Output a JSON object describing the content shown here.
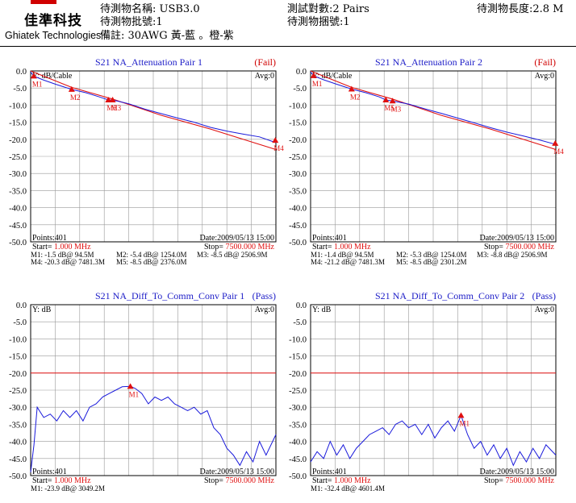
{
  "header": {
    "logo_cn": "佳準科技",
    "logo_en": "Ghiatek Technologies",
    "dut_name": "待測物名稱: USB3.0",
    "lot_no": "待測物批號:1",
    "remark": "備註: 30AWG 黃-藍 。橙-紫",
    "test_pairs": "測試對數:2 Pairs",
    "bundle_no": "待測物捆號:1",
    "dut_length": "待測物長度:2.8 M"
  },
  "colors": {
    "trace": "#1a1adb",
    "limit": "#e01010",
    "title": "#2020c8",
    "fail": "#d00000",
    "pass": "#2020c8",
    "marker": "#e01010",
    "grid": "#999999",
    "red_text": "#e01010"
  },
  "chart_data": [
    {
      "type": "line",
      "title": "S21  NA_Attenuation Pair 1",
      "status": "(Fail)",
      "ylabel": "Y: dB/Cable",
      "avg": "Avg:0",
      "ylim": [
        -50,
        0
      ],
      "yticks": [
        "0.0",
        "-5.0",
        "-10.0",
        "-15.0",
        "-20.0",
        "-25.0",
        "-30.0",
        "-35.0",
        "-40.0",
        "-45.0",
        "-50.0"
      ],
      "points": "Points:401",
      "date": "Date:2009/05/13 15:00",
      "start_label": "Start=",
      "start_value": "1.000 MHz",
      "stop_label": "Stop=",
      "stop_value": "7500.000 MHz",
      "marker_lines": [
        "M1: -1.5 dB@ 94.5M",
        "M2: -5.4 dB@ 1254.0M",
        "M3: -8.5 dB@ 2506.9M",
        "M4: -20.3 dB@ 7481.3M",
        "M5: -8.5 dB@ 2376.0M"
      ],
      "trace": [
        [
          0,
          -0.3
        ],
        [
          94.5,
          -1.5
        ],
        [
          400,
          -2.7
        ],
        [
          800,
          -4.0
        ],
        [
          1254,
          -5.4
        ],
        [
          1700,
          -6.4
        ],
        [
          2100,
          -7.6
        ],
        [
          2376,
          -8.5
        ],
        [
          2506.9,
          -8.5
        ],
        [
          3000,
          -9.6
        ],
        [
          3500,
          -11.2
        ],
        [
          4000,
          -12.5
        ],
        [
          4500,
          -13.8
        ],
        [
          5000,
          -15.0
        ],
        [
          5500,
          -16.5
        ],
        [
          6000,
          -17.6
        ],
        [
          6500,
          -18.5
        ],
        [
          7000,
          -19.3
        ],
        [
          7500,
          -21.0
        ]
      ],
      "limit": [
        [
          0,
          0
        ],
        [
          1254,
          -4.8
        ],
        [
          2500,
          -8.2
        ],
        [
          4000,
          -13.0
        ],
        [
          5500,
          -17.0
        ],
        [
          7500,
          -23.0
        ]
      ],
      "markers": [
        {
          "label": "M1",
          "x": 94.5,
          "y": -1.5
        },
        {
          "label": "M2",
          "x": 1254,
          "y": -5.4
        },
        {
          "label": "M3",
          "x": 2506.9,
          "y": -8.5
        },
        {
          "label": "M4",
          "x": 7481.3,
          "y": -20.3
        },
        {
          "label": "M5",
          "x": 2376,
          "y": -8.5
        }
      ]
    },
    {
      "type": "line",
      "title": "S21  NA_Attenuation Pair 2",
      "status": "(Fail)",
      "ylabel": "Y: dB/Cable",
      "avg": "Avg:0",
      "ylim": [
        -50,
        0
      ],
      "yticks": [
        "0.0",
        "-5.0",
        "-10.0",
        "-15.0",
        "-20.0",
        "-25.0",
        "-30.0",
        "-35.0",
        "-40.0",
        "-45.0",
        "-50.0"
      ],
      "points": "Points:401",
      "date": "Date:2009/05/13 15:00",
      "start_label": "Start=",
      "start_value": "1.000 MHz",
      "stop_label": "Stop=",
      "stop_value": "7500.000 MHz",
      "marker_lines": [
        "M1: -1.4 dB@ 94.5M",
        "M2: -5.3 dB@ 1254.0M",
        "M3: -8.8 dB@ 2506.9M",
        "M4: -21.2 dB@ 7481.3M",
        "M5: -8.5 dB@ 2301.2M"
      ],
      "trace": [
        [
          0,
          -0.3
        ],
        [
          94.5,
          -1.4
        ],
        [
          400,
          -2.6
        ],
        [
          800,
          -3.9
        ],
        [
          1254,
          -5.3
        ],
        [
          1700,
          -6.4
        ],
        [
          2100,
          -7.6
        ],
        [
          2301.2,
          -8.5
        ],
        [
          2506.9,
          -8.8
        ],
        [
          3000,
          -9.7
        ],
        [
          3500,
          -11.1
        ],
        [
          4000,
          -12.4
        ],
        [
          4500,
          -13.8
        ],
        [
          5000,
          -15.2
        ],
        [
          5500,
          -16.6
        ],
        [
          6000,
          -17.9
        ],
        [
          6500,
          -19.0
        ],
        [
          7000,
          -20.2
        ],
        [
          7500,
          -21.5
        ]
      ],
      "limit": [
        [
          0,
          0
        ],
        [
          1254,
          -4.8
        ],
        [
          2500,
          -8.2
        ],
        [
          4000,
          -13.0
        ],
        [
          5500,
          -17.0
        ],
        [
          7500,
          -23.0
        ]
      ],
      "markers": [
        {
          "label": "M1",
          "x": 94.5,
          "y": -1.4
        },
        {
          "label": "M2",
          "x": 1254,
          "y": -5.3
        },
        {
          "label": "M3",
          "x": 2506.9,
          "y": -8.8
        },
        {
          "label": "M4",
          "x": 7481.3,
          "y": -21.2
        },
        {
          "label": "M5",
          "x": 2301.2,
          "y": -8.5
        }
      ]
    },
    {
      "type": "line",
      "title": "S21  NA_Diff_To_Comm_Conv Pair 1",
      "status": "(Pass)",
      "ylabel": "Y: dB",
      "avg": "Avg:0",
      "ylim": [
        -50,
        0
      ],
      "yticks": [
        "0.0",
        "-5.0",
        "-10.0",
        "-15.0",
        "-20.0",
        "-25.0",
        "-30.0",
        "-35.0",
        "-40.0",
        "-45.0",
        "-50.0"
      ],
      "points": "Points:401",
      "date": "Date:2009/05/13 15:00",
      "start_label": "Start=",
      "start_value": "1.000 MHz",
      "stop_label": "Stop=",
      "stop_value": "7500.000 MHz",
      "marker_lines": [
        "M1: -23.9 dB@ 3049.2M"
      ],
      "limit_level": -20,
      "trace": [
        [
          0,
          -49
        ],
        [
          100,
          -41
        ],
        [
          200,
          -30
        ],
        [
          400,
          -33
        ],
        [
          600,
          -32
        ],
        [
          800,
          -34
        ],
        [
          1000,
          -31
        ],
        [
          1200,
          -33
        ],
        [
          1400,
          -31
        ],
        [
          1600,
          -34
        ],
        [
          1800,
          -30
        ],
        [
          2000,
          -29
        ],
        [
          2200,
          -27
        ],
        [
          2400,
          -26
        ],
        [
          2600,
          -25
        ],
        [
          2800,
          -24
        ],
        [
          3049.2,
          -23.9
        ],
        [
          3200,
          -24.5
        ],
        [
          3400,
          -26
        ],
        [
          3600,
          -29
        ],
        [
          3800,
          -27
        ],
        [
          4000,
          -28
        ],
        [
          4200,
          -27
        ],
        [
          4400,
          -29
        ],
        [
          4600,
          -30
        ],
        [
          4800,
          -31
        ],
        [
          5000,
          -30
        ],
        [
          5200,
          -32
        ],
        [
          5400,
          -31
        ],
        [
          5600,
          -36
        ],
        [
          5800,
          -38
        ],
        [
          6000,
          -42
        ],
        [
          6200,
          -44
        ],
        [
          6400,
          -47
        ],
        [
          6600,
          -43
        ],
        [
          6800,
          -46
        ],
        [
          7000,
          -40
        ],
        [
          7200,
          -44
        ],
        [
          7500,
          -38
        ]
      ],
      "markers": [
        {
          "label": "M1",
          "x": 3049.2,
          "y": -23.9
        }
      ]
    },
    {
      "type": "line",
      "title": "S21  NA_Diff_To_Comm_Conv Pair 2",
      "status": "(Pass)",
      "ylabel": "Y: dB",
      "avg": "Avg:0",
      "ylim": [
        -50,
        0
      ],
      "yticks": [
        "0.0",
        "-5.0",
        "-10.0",
        "-15.0",
        "-20.0",
        "-25.0",
        "-30.0",
        "-35.0",
        "-40.0",
        "-45.0",
        "-50.0"
      ],
      "points": "Points:401",
      "date": "Date:2009/05/13 15:00",
      "start_label": "Start=",
      "start_value": "1.000 MHz",
      "stop_label": "Stop=",
      "stop_value": "7500.000 MHz",
      "marker_lines": [
        "M1: -32.4 dB@ 4601.4M"
      ],
      "limit_level": -20,
      "trace": [
        [
          0,
          -46
        ],
        [
          200,
          -43
        ],
        [
          400,
          -45
        ],
        [
          600,
          -40
        ],
        [
          800,
          -44
        ],
        [
          1000,
          -41
        ],
        [
          1200,
          -45
        ],
        [
          1400,
          -42
        ],
        [
          1600,
          -40
        ],
        [
          1800,
          -38
        ],
        [
          2000,
          -37
        ],
        [
          2200,
          -36
        ],
        [
          2400,
          -38
        ],
        [
          2600,
          -35
        ],
        [
          2800,
          -34
        ],
        [
          3000,
          -36
        ],
        [
          3200,
          -35
        ],
        [
          3400,
          -38
        ],
        [
          3600,
          -35
        ],
        [
          3800,
          -39
        ],
        [
          4000,
          -36
        ],
        [
          4200,
          -34
        ],
        [
          4400,
          -37
        ],
        [
          4601.4,
          -32.4
        ],
        [
          4800,
          -38
        ],
        [
          5000,
          -42
        ],
        [
          5200,
          -40
        ],
        [
          5400,
          -44
        ],
        [
          5600,
          -41
        ],
        [
          5800,
          -45
        ],
        [
          6000,
          -42
        ],
        [
          6200,
          -47
        ],
        [
          6400,
          -43
        ],
        [
          6600,
          -46
        ],
        [
          6800,
          -42
        ],
        [
          7000,
          -45
        ],
        [
          7200,
          -41
        ],
        [
          7500,
          -44
        ]
      ],
      "markers": [
        {
          "label": "M1",
          "x": 4601.4,
          "y": -32.4
        }
      ]
    }
  ]
}
